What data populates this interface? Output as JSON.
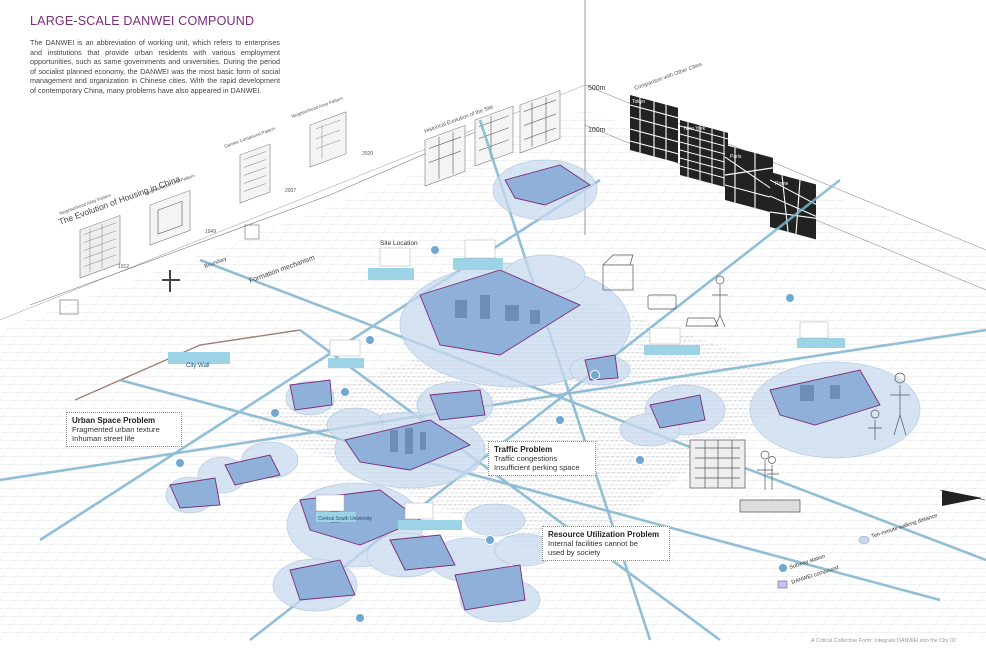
{
  "page": {
    "title": "LARGE-SCALE DANWEI COMPOUND",
    "intro": "The DANWEI is an abbreviation of working unit, which refers to enterprises and institutions that  provide urban residents with various employment opportunities, such as same governments and universities. During the period of socialist planned economy, the DANWEI was the most basic form of social management and organization in Chinese cities. With the rapid development of contemporary China, many problems have also appeared in DANWEI.",
    "footer": "A Critical Collective Form: Integrate DANWEI into the City    02"
  },
  "colors": {
    "accent": "#7a2c7e",
    "danwei_fill": "#8fb0d8",
    "subway_line": "#7fb5cf",
    "bubble": "#c8daee"
  },
  "callouts": {
    "urban_space": {
      "heading": "Urban Space Problem",
      "lines": [
        "Fragmented urban texture",
        "Inhuman street life"
      ]
    },
    "traffic": {
      "heading": "Traffic Problem",
      "lines": [
        "Traffic congestions",
        "Insufficient perking space"
      ]
    },
    "resource": {
      "heading": "Resource Utilization Problem",
      "lines": [
        "Internal facilities cannot be",
        "used by society"
      ]
    }
  },
  "evolution": {
    "title": "The Evolution of Housing in China",
    "years": [
      "1912",
      "1949",
      "2007",
      "2020"
    ],
    "panels": [
      "Neighborhood Alley Pattern",
      "Neighborhood Unit Pattern",
      "Danwei Compound Pattern",
      "Neighborhood Area Pattern"
    ],
    "formation_title": "Formation mechanism",
    "boundary_label": "Boundary",
    "historical_title": "Historical Evolution of the Site",
    "comparison_title": "Comparison with Other Cities",
    "cities": [
      "Tokyo",
      "New York",
      "Paris",
      "Rome"
    ],
    "scale_500": "500m",
    "scale_100": "100m"
  },
  "site_labels": [
    "City Wall",
    "Site Location",
    "Central South University"
  ],
  "legend": {
    "subway": "Subway station",
    "danwei": "DANWEI compound",
    "walk": "Ten-minute walking distance"
  }
}
